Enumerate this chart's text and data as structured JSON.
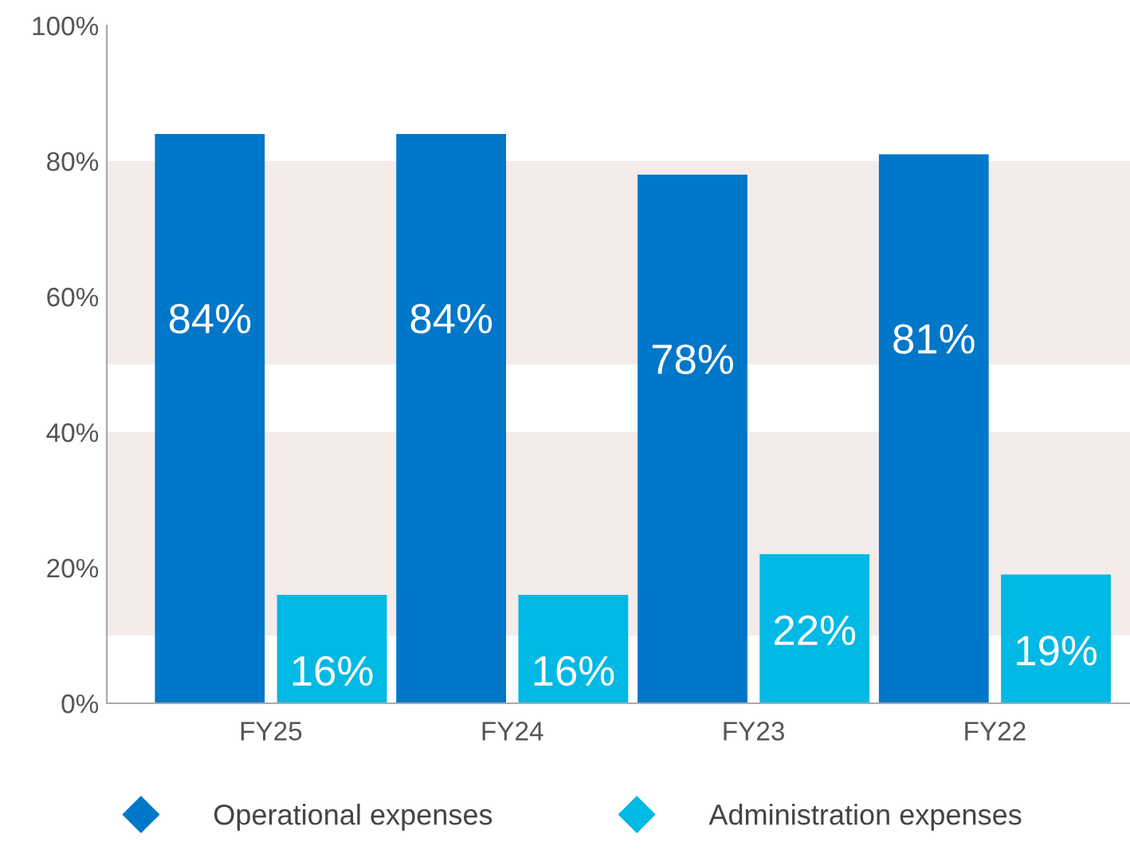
{
  "chart_data": {
    "type": "bar",
    "categories": [
      "FY25",
      "FY24",
      "FY23",
      "FY22"
    ],
    "series": [
      {
        "name": "Operational expenses",
        "color": "#0077c8",
        "values": [
          84,
          84,
          78,
          81
        ]
      },
      {
        "name": "Administration expenses",
        "color": "#00b9e4",
        "values": [
          16,
          16,
          22,
          19
        ]
      }
    ],
    "value_labels": [
      [
        "84%",
        "84%",
        "78%",
        "81%"
      ],
      [
        "16%",
        "16%",
        "22%",
        "19%"
      ]
    ],
    "ylim": [
      0,
      100
    ],
    "yticks": [
      {
        "value": 0,
        "label": "0%"
      },
      {
        "value": 20,
        "label": "20%"
      },
      {
        "value": 40,
        "label": "40%"
      },
      {
        "value": 60,
        "label": "60%"
      },
      {
        "value": 80,
        "label": "80%"
      },
      {
        "value": 100,
        "label": "100%"
      }
    ],
    "bands": [
      {
        "axis": "y",
        "from": 10,
        "to": 40,
        "color": "#f3ecea"
      },
      {
        "axis": "y",
        "from": 50,
        "to": 80,
        "color": "#f3ecea"
      }
    ],
    "grid": false,
    "legend": "bottom",
    "marker": "diamond"
  }
}
